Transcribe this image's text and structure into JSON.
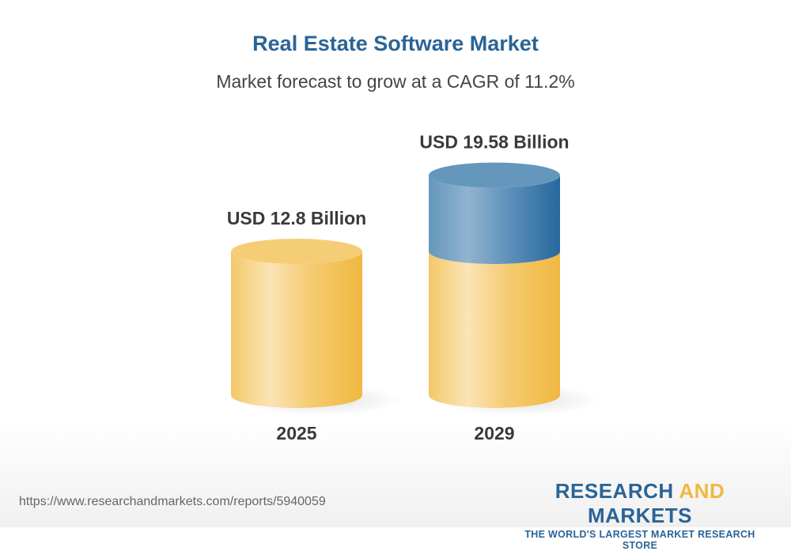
{
  "title": "Real Estate Software Market",
  "subtitle": "Market forecast to grow at a CAGR of 11.2%",
  "chart_data": {
    "type": "bar",
    "style": "3d-cylinder",
    "categories": [
      "2025",
      "2029"
    ],
    "values": [
      12.8,
      19.58
    ],
    "data_labels": [
      "USD 12.8 Billion",
      "USD 19.58 Billion"
    ],
    "unit": "USD Billion",
    "ylim": [
      0,
      19.58
    ],
    "grid": false,
    "colors": {
      "base": "#f3c35a",
      "growth": "#2a6496"
    }
  },
  "footer": {
    "url": "https://www.researchandmarkets.com/reports/5940059",
    "logo_part1": "RESEARCH ",
    "logo_part2": "AND",
    "logo_part3": " MARKETS",
    "tagline": "THE WORLD'S LARGEST MARKET RESEARCH STORE"
  }
}
